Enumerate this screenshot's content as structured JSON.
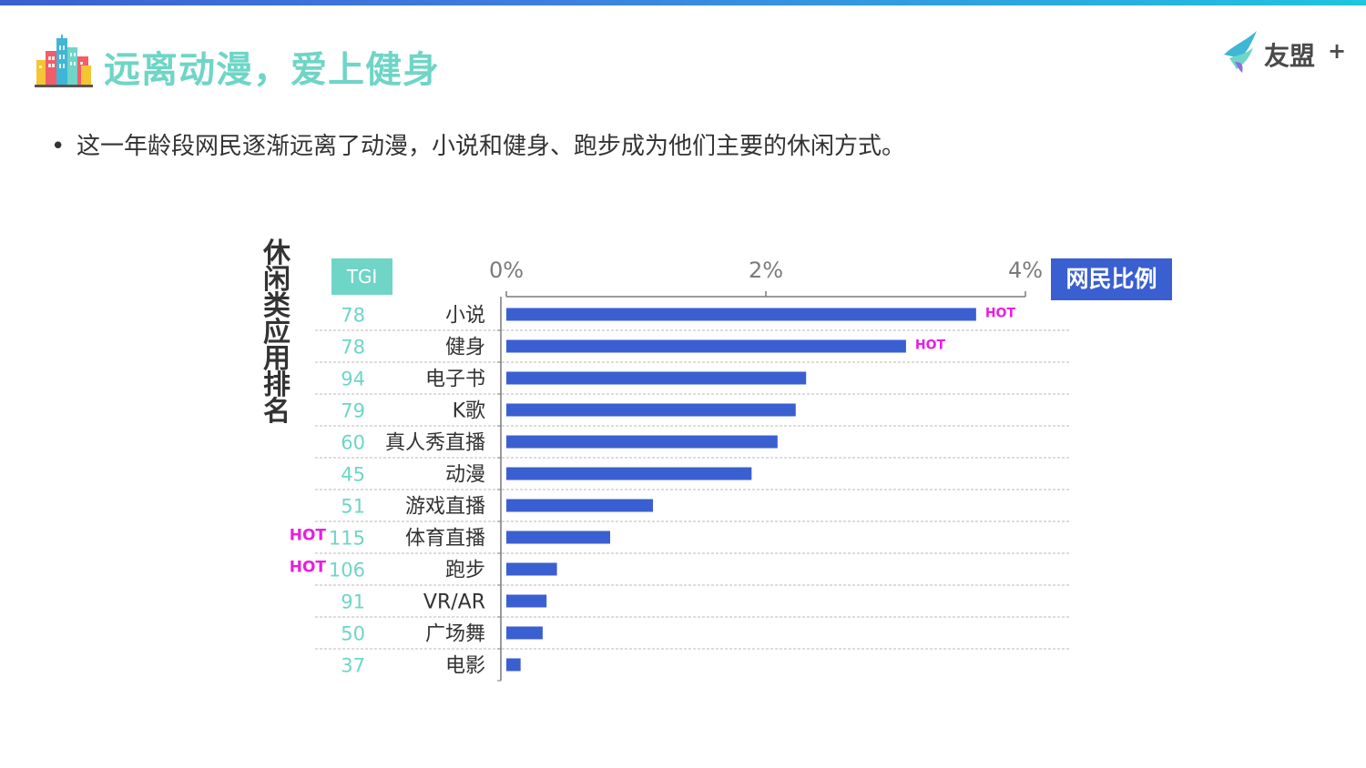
{
  "page": {
    "title": "远离动漫，爱上健身",
    "bullet": "这一年龄段网民逐渐远离了动漫，小说和健身、跑步成为他们主要的休闲方式。",
    "brand": "友盟",
    "brand_plus": "+"
  },
  "chart_data": {
    "type": "bar",
    "orientation": "horizontal",
    "ylabel": "休闲类应用排名",
    "tgi_header": "TGI",
    "series": [
      {
        "name": "网民比例",
        "values": [
          3.62,
          3.08,
          2.31,
          2.23,
          2.09,
          1.89,
          1.13,
          0.8,
          0.39,
          0.31,
          0.28,
          0.11
        ]
      }
    ],
    "categories": [
      "小说",
      "健身",
      "电子书",
      "K歌",
      "真人秀直播",
      "动漫",
      "游戏直播",
      "体育直播",
      "跑步",
      "VR/AR",
      "广场舞",
      "电影"
    ],
    "tgi": [
      "78",
      "78",
      "94",
      "79",
      "60",
      "45",
      "51",
      "115",
      "106",
      "91",
      "50",
      "37"
    ],
    "hot_label": "HOT",
    "bar_hot": [
      true,
      true,
      false,
      false,
      false,
      false,
      false,
      false,
      false,
      false,
      false,
      false
    ],
    "tgi_hot": [
      false,
      false,
      false,
      false,
      false,
      false,
      false,
      true,
      true,
      false,
      false,
      false
    ],
    "xlim": [
      0,
      4
    ],
    "xticks": [
      "0%",
      "2%",
      "4%"
    ],
    "grid": true,
    "colors": {
      "bar": "#3a5fd0",
      "tgi": "#6fd5c6",
      "hot": "#e81ee0",
      "grid": "#b8b8b8",
      "axis": "#7a7a7a",
      "tick_text": "#7a7a7a"
    }
  }
}
